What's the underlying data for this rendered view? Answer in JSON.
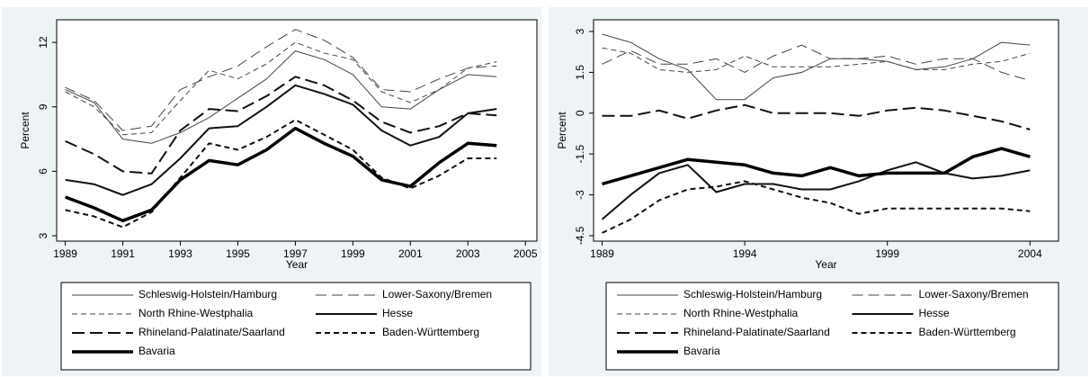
{
  "chart_data": [
    {
      "type": "line",
      "x_label": "Year",
      "y_label": "Percent",
      "x": [
        1989,
        1990,
        1991,
        1992,
        1993,
        1994,
        1995,
        1996,
        1997,
        1998,
        1999,
        2000,
        2001,
        2002,
        2003,
        2004
      ],
      "xlim": [
        1988.7,
        2005.4
      ],
      "xticks": [
        1989,
        1991,
        1993,
        1995,
        1997,
        1999,
        2001,
        2003,
        2005
      ],
      "ylim": [
        2.75,
        13.05
      ],
      "yticks": [
        3,
        6,
        9,
        12
      ],
      "series": [
        {
          "name": "Schleswig-Holstein/Hamburg",
          "color": "#444444",
          "width": 1,
          "dash": "none",
          "values": [
            9.8,
            9.2,
            7.5,
            7.3,
            7.8,
            8.5,
            9.4,
            10.3,
            11.6,
            11.2,
            10.5,
            9.0,
            8.9,
            9.8,
            10.5,
            10.4
          ]
        },
        {
          "name": "Lower-Saxony/Bremen",
          "color": "#444444",
          "width": 1,
          "dash": "12,6",
          "values": [
            9.9,
            9.3,
            7.9,
            8.1,
            9.8,
            10.4,
            10.9,
            11.8,
            12.6,
            12.1,
            11.3,
            9.8,
            9.7,
            10.3,
            10.8,
            10.9
          ]
        },
        {
          "name": "North Rhine-Westphalia",
          "color": "#444444",
          "width": 1,
          "dash": "6,4",
          "values": [
            9.7,
            9.0,
            7.7,
            7.8,
            9.3,
            10.7,
            10.3,
            11.0,
            12.0,
            11.5,
            11.2,
            9.7,
            9.2,
            9.8,
            10.8,
            11.1
          ]
        },
        {
          "name": "Hesse",
          "color": "#111111",
          "width": 2,
          "dash": "none",
          "values": [
            5.6,
            5.4,
            4.9,
            5.4,
            6.6,
            8.0,
            8.1,
            9.0,
            10.0,
            9.6,
            9.1,
            7.9,
            7.2,
            7.6,
            8.7,
            8.9
          ]
        },
        {
          "name": "Rhineland-Palatinate/Saarland",
          "color": "#111111",
          "width": 2,
          "dash": "14,6",
          "values": [
            7.4,
            6.8,
            6.0,
            5.9,
            7.9,
            8.9,
            8.8,
            9.5,
            10.4,
            10.0,
            9.3,
            8.3,
            7.8,
            8.1,
            8.7,
            8.6
          ]
        },
        {
          "name": "Baden-Württemberg",
          "color": "#111111",
          "width": 2,
          "dash": "6,4",
          "values": [
            4.2,
            3.9,
            3.4,
            4.1,
            5.7,
            7.3,
            7.0,
            7.6,
            8.4,
            7.7,
            7.0,
            5.7,
            5.2,
            5.8,
            6.6,
            6.6
          ]
        },
        {
          "name": "Bavaria",
          "color": "#000000",
          "width": 3.5,
          "dash": "none",
          "values": [
            4.8,
            4.3,
            3.7,
            4.2,
            5.6,
            6.5,
            6.3,
            7.0,
            8.0,
            7.3,
            6.7,
            5.6,
            5.3,
            6.4,
            7.3,
            7.2
          ]
        }
      ]
    },
    {
      "type": "line",
      "x_label": "Year",
      "y_label": "Percent",
      "x": [
        1989,
        1990,
        1991,
        1992,
        1993,
        1994,
        1995,
        1996,
        1997,
        1998,
        1999,
        2000,
        2001,
        2002,
        2003,
        2004
      ],
      "xlim": [
        1988.7,
        2005.0
      ],
      "xticks": [
        1989,
        1994,
        1999,
        2004
      ],
      "ylim": [
        -4.7,
        3.43
      ],
      "yticks": [
        3,
        1.5,
        0,
        -1.5,
        -3,
        -4.5
      ],
      "series": [
        {
          "name": "Schleswig-Holstein/Hamburg",
          "color": "#444444",
          "width": 1,
          "dash": "none",
          "values": [
            2.9,
            2.6,
            2.0,
            1.6,
            0.5,
            0.5,
            1.3,
            1.5,
            2.0,
            2.0,
            1.9,
            1.6,
            1.7,
            2.0,
            2.6,
            2.5
          ]
        },
        {
          "name": "Lower-Saxony/Bremen",
          "color": "#444444",
          "width": 1,
          "dash": "12,6",
          "values": [
            1.8,
            2.3,
            1.8,
            1.8,
            2.0,
            1.5,
            2.1,
            2.5,
            2.0,
            2.0,
            2.1,
            1.8,
            2.0,
            2.0,
            1.5,
            1.2
          ]
        },
        {
          "name": "North Rhine-Westphalia",
          "color": "#444444",
          "width": 1,
          "dash": "6,4",
          "values": [
            2.4,
            2.2,
            1.6,
            1.5,
            1.6,
            2.1,
            1.7,
            1.7,
            1.7,
            1.8,
            1.9,
            1.6,
            1.6,
            1.8,
            1.9,
            2.2
          ]
        },
        {
          "name": "Hesse",
          "color": "#111111",
          "width": 2,
          "dash": "none",
          "values": [
            -3.9,
            -3.0,
            -2.2,
            -1.9,
            -2.9,
            -2.6,
            -2.6,
            -2.8,
            -2.8,
            -2.5,
            -2.1,
            -1.8,
            -2.2,
            -2.4,
            -2.3,
            -2.1
          ]
        },
        {
          "name": "Rhineland-Palatinate/Saarland",
          "color": "#111111",
          "width": 2,
          "dash": "14,6",
          "values": [
            -0.1,
            -0.1,
            0.1,
            -0.2,
            0.1,
            0.3,
            0.0,
            0.0,
            0.0,
            -0.1,
            0.1,
            0.2,
            0.1,
            -0.1,
            -0.3,
            -0.6
          ]
        },
        {
          "name": "Baden-Württemberg",
          "color": "#111111",
          "width": 2,
          "dash": "6,4",
          "values": [
            -4.4,
            -3.9,
            -3.2,
            -2.8,
            -2.7,
            -2.5,
            -2.8,
            -3.1,
            -3.3,
            -3.7,
            -3.5,
            -3.5,
            -3.5,
            -3.5,
            -3.5,
            -3.6
          ]
        },
        {
          "name": "Bavaria",
          "color": "#000000",
          "width": 3.5,
          "dash": "none",
          "values": [
            -2.6,
            -2.3,
            -2.0,
            -1.7,
            -1.8,
            -1.9,
            -2.2,
            -2.3,
            -2.0,
            -2.3,
            -2.2,
            -2.2,
            -2.2,
            -1.6,
            -1.3,
            -1.6
          ]
        }
      ]
    }
  ]
}
